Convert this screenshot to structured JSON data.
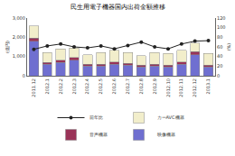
{
  "chart_data": {
    "type": "bar",
    "title": "民生用電子機器国内出荷金額推移",
    "y_label": "(億円)",
    "y2_label": "(%)",
    "categories": [
      "2011.12",
      "2012.1",
      "2012.2",
      "2012.3",
      "2012.4",
      "2012.5",
      "2012.6",
      "2012.7",
      "2012.8",
      "2012.9",
      "2012.10",
      "2012.11",
      "2012.12",
      "2013.1"
    ],
    "stacked": true,
    "grid": false,
    "legend": "bottom",
    "ylim": [
      0,
      3000
    ],
    "yticks": [
      0,
      {
        "value": 1000,
        "label": "1,000"
      },
      {
        "value": 2000,
        "label": "2,000"
      },
      {
        "value": 3000,
        "label": "3,000"
      }
    ],
    "y2lim": [
      0,
      120
    ],
    "y2ticks": [
      0,
      20,
      40,
      60,
      80,
      100,
      120
    ],
    "series": [
      {
        "name": "映像機器",
        "color": "#6f6fd0",
        "type": "bar",
        "values": [
          1800,
          600,
          700,
          800,
          500,
          500,
          600,
          550,
          450,
          500,
          450,
          600,
          1100,
          450
        ]
      },
      {
        "name": "音声機器",
        "color": "#9a3358",
        "type": "bar",
        "values": [
          150,
          100,
          100,
          150,
          100,
          100,
          120,
          100,
          100,
          100,
          100,
          120,
          150,
          100
        ]
      },
      {
        "name": "カーAVC機器",
        "color": "#f2eecb",
        "type": "bar",
        "values": [
          650,
          500,
          600,
          500,
          500,
          600,
          600,
          550,
          500,
          600,
          600,
          600,
          450,
          600
        ]
      },
      {
        "name": "前年比",
        "color": "#222222",
        "type": "line",
        "axis": "y2",
        "marker": "circle",
        "values": [
          55,
          62,
          66,
          60,
          58,
          62,
          56,
          63,
          70,
          60,
          56,
          66,
          72,
          73
        ]
      }
    ]
  }
}
